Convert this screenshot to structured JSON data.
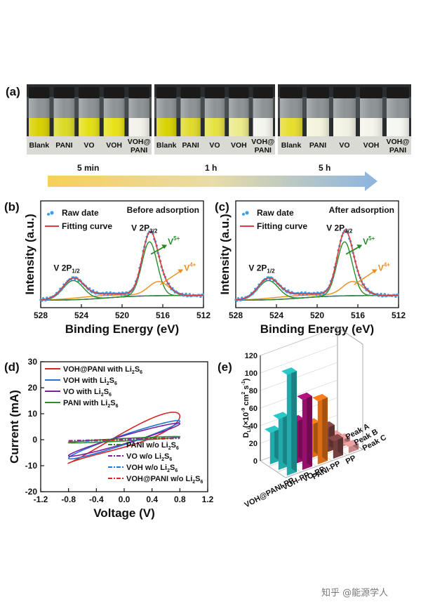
{
  "panel_a": {
    "label": "(a)",
    "photos": [
      {
        "name": "5 min",
        "vials": [
          "Blank",
          "PANI",
          "VO",
          "VOH",
          "VOH@",
          "PANI"
        ],
        "colors": [
          "#d9d000",
          "#dada24",
          "#e4df12",
          "#e8e216",
          "#f2f2ea"
        ]
      },
      {
        "name": "1 h",
        "vials": [
          "Blank",
          "PANI",
          "VO",
          "VOH",
          "VOH@",
          "PANI"
        ],
        "colors": [
          "#d8d200",
          "#e0da2a",
          "#e6e240",
          "#eceb8a",
          "#f4f4ee"
        ]
      },
      {
        "name": "5 h",
        "vials": [
          "Blank",
          "PANI",
          "VO",
          "VOH",
          "VOH@",
          "PANI"
        ],
        "colors": [
          "#e6de2a",
          "#f4f3dc",
          "#f2f2e4",
          "#f4f4ea",
          "#f6f6f2"
        ]
      }
    ],
    "times": [
      "5 min",
      "1 h",
      "5 h"
    ]
  },
  "panel_b": {
    "label": "(b)",
    "title": "Before adsorption",
    "legend": [
      "Raw date",
      "Fitting curve"
    ],
    "peak_labels": {
      "v2p12_main": "V 2P",
      "v2p12_sub": "1/2",
      "v2p32_main": "V 2P",
      "v2p32_sub": "3/2",
      "v5_main": "V",
      "v5_sup": "5+",
      "v4_main": "V",
      "v4_sup": "4+"
    },
    "chart_data": {
      "type": "line",
      "xlabel": "Binding Energy (eV)",
      "ylabel": "Intensity (a.u.)",
      "xlim": [
        528,
        512
      ],
      "xticks": [
        "528",
        "524",
        "520",
        "516",
        "512"
      ],
      "peaks": {
        "v2p12": 524.8,
        "v5": 517.3,
        "v4": 516.4
      },
      "series": [
        "Raw date",
        "Fitting curve",
        "V5+ component",
        "V4+ component",
        "Background"
      ]
    }
  },
  "panel_c": {
    "label": "(c)",
    "title": "After adsorption",
    "legend": [
      "Raw date",
      "Fitting curve"
    ],
    "peak_labels": {
      "v2p12_main": "V 2P",
      "v2p12_sub": "1/2",
      "v2p32_main": "V 2P",
      "v2p32_sub": "3/2",
      "v5_main": "V",
      "v5_sup": "5+",
      "v4_main": "V",
      "v4_sup": "4+"
    },
    "chart_data": {
      "type": "line",
      "xlabel": "Binding Energy (eV)",
      "ylabel": "Intensity (a.u.)",
      "xlim": [
        528,
        512
      ],
      "xticks": [
        "528",
        "524",
        "520",
        "516",
        "512"
      ],
      "peaks": {
        "v2p12": 524.8,
        "v5": 517.3,
        "v4": 516.5
      },
      "series": [
        "Raw date",
        "Fitting curve",
        "V5+ component",
        "V4+ component",
        "Background"
      ]
    }
  },
  "panel_d": {
    "label": "(d)",
    "legend_top": [
      {
        "name": "VOH@PANI with Li",
        "suffix": "S",
        "color": "#d62728"
      },
      {
        "name": "VOH with Li",
        "suffix": "S",
        "color": "#1f77d4"
      },
      {
        "name": "VO with Li",
        "suffix": "S",
        "color": "#7b1fa2"
      },
      {
        "name": "PANI with Li",
        "suffix": "S",
        "color": "#2e8b2e"
      }
    ],
    "legend_bottom": [
      {
        "name": "PANI w/o Li",
        "suffix": "S",
        "color": "#2e8b2e"
      },
      {
        "name": "VO w/o Li",
        "suffix": "S",
        "color": "#7b1fa2"
      },
      {
        "name": "VOH w/o Li",
        "suffix": "S",
        "color": "#1f77d4"
      },
      {
        "name": "VOH@PANI w/o Li",
        "suffix": "S",
        "color": "#d62728"
      }
    ],
    "chart_data": {
      "type": "line",
      "xlabel": "Voltage (V)",
      "ylabel": "Current (mA)",
      "xlim": [
        -1.2,
        1.2
      ],
      "ylim": [
        -20,
        30
      ],
      "xticks": [
        "-1.2",
        "-0.8",
        "-0.4",
        "0.0",
        "0.4",
        "0.8",
        "1.2"
      ],
      "yticks": [
        "30",
        "20",
        "10",
        "0",
        "-10",
        "-20"
      ],
      "cv_amplitude_mA": {
        "VOH@PANI": 9.5,
        "VOH": 7.5,
        "VO": 6.5,
        "PANI": 1.2
      }
    }
  },
  "panel_e": {
    "label": "(e)",
    "chart_data": {
      "type": "bar",
      "zlabel_main": "D",
      "zlabel_sub": "Li",
      "zlabel_rest": "(×10",
      "zlabel_exp": "-9",
      "zlabel_unit": " cm",
      "zlabel_unit_sup": "2",
      "zlabel_end": " s",
      "zlabel_end_sup": "-1",
      "zlabel_close": ")",
      "zticks": [
        "0",
        "20",
        "40",
        "60",
        "80",
        "100",
        "120"
      ],
      "zlim": [
        0,
        120
      ],
      "categories": [
        "VOH@PANI-PP",
        "VOH-PP",
        "VO-PP",
        "PANI-PP",
        "PP"
      ],
      "peaks": [
        "Peak A",
        "Peak B",
        "Peak C"
      ],
      "series": [
        {
          "name": "Peak A",
          "values": [
            36,
            22,
            18,
            12,
            5
          ]
        },
        {
          "name": "Peak B",
          "values": [
            58,
            48,
            38,
            28,
            8
          ]
        },
        {
          "name": "Peak C",
          "values": [
            115,
            80,
            72,
            20,
            7
          ]
        }
      ],
      "colors": {
        "VOH@PANI-PP": "#28c8c8",
        "VOH-PP": "#b0127e",
        "VO-PP": "#ff7f1a",
        "PANI-PP": "#8a4a4a",
        "PP": "#f0a0a0"
      }
    }
  },
  "watermark": "知乎 @能源学人"
}
